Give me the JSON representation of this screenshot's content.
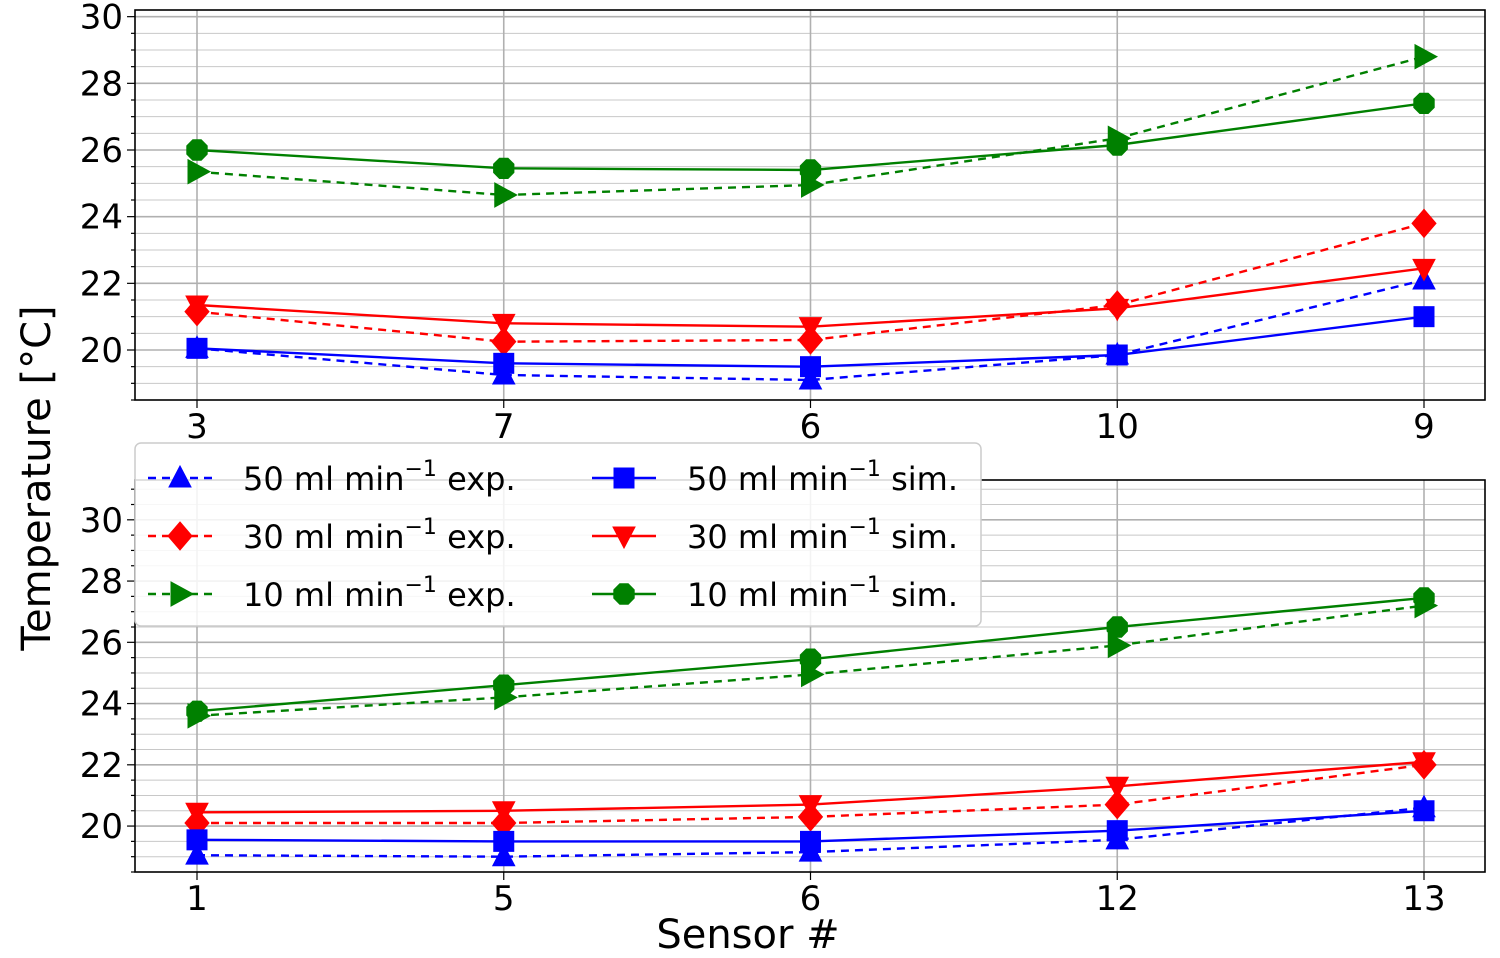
{
  "chart_data": [
    {
      "type": "line",
      "categories": [
        "3",
        "7",
        "6",
        "10",
        "9"
      ],
      "ylim": [
        18.5,
        30.2
      ],
      "yticks": [
        20,
        22,
        24,
        26,
        28,
        30
      ],
      "ylabel": "Temperature [°C]",
      "xlabel": "",
      "grid": true,
      "series": [
        {
          "name": "50 ml min⁻¹ exp.",
          "values": [
            20.05,
            19.25,
            19.1,
            19.85,
            22.1
          ]
        },
        {
          "name": "30 ml min⁻¹ exp.",
          "values": [
            21.15,
            20.25,
            20.3,
            21.35,
            23.8
          ]
        },
        {
          "name": "10 ml min⁻¹ exp.",
          "values": [
            25.35,
            24.65,
            24.95,
            26.35,
            28.8
          ]
        },
        {
          "name": "50 ml min⁻¹ sim.",
          "values": [
            20.05,
            19.6,
            19.5,
            19.85,
            21.0
          ]
        },
        {
          "name": "30 ml min⁻¹ sim.",
          "values": [
            21.35,
            20.8,
            20.7,
            21.25,
            22.45
          ]
        },
        {
          "name": "10 ml min⁻¹ sim.",
          "values": [
            26.0,
            25.45,
            25.4,
            26.15,
            27.4
          ]
        }
      ]
    },
    {
      "type": "line",
      "categories": [
        "1",
        "5",
        "6",
        "12",
        "13"
      ],
      "ylim": [
        18.5,
        31.3
      ],
      "yticks": [
        20,
        22,
        24,
        26,
        28,
        30
      ],
      "ylabel": "Temperature [°C]",
      "xlabel": "Sensor #",
      "grid": true,
      "series": [
        {
          "name": "50 ml min⁻¹ exp.",
          "values": [
            19.05,
            19.0,
            19.15,
            19.55,
            20.6
          ]
        },
        {
          "name": "30 ml min⁻¹ exp.",
          "values": [
            20.1,
            20.1,
            20.3,
            20.7,
            22.0
          ]
        },
        {
          "name": "10 ml min⁻¹ exp.",
          "values": [
            23.6,
            24.2,
            24.95,
            25.9,
            27.2
          ]
        },
        {
          "name": "50 ml min⁻¹ sim.",
          "values": [
            19.55,
            19.5,
            19.5,
            19.85,
            20.5
          ]
        },
        {
          "name": "30 ml min⁻¹ sim.",
          "values": [
            20.45,
            20.5,
            20.7,
            21.3,
            22.1
          ]
        },
        {
          "name": "10 ml min⁻¹ sim.",
          "values": [
            23.75,
            24.6,
            25.45,
            26.5,
            27.45
          ]
        }
      ]
    }
  ],
  "legend": {
    "position": "center-left",
    "entries": [
      {
        "prefix": "50 ml min",
        "sup": "−1",
        "suffix": " exp.",
        "color": "#0000ff",
        "marker": "triangle-up",
        "dash": true
      },
      {
        "prefix": "30 ml min",
        "sup": "−1",
        "suffix": " exp.",
        "color": "#ff0000",
        "marker": "diamond",
        "dash": true
      },
      {
        "prefix": "10 ml min",
        "sup": "−1",
        "suffix": " exp.",
        "color": "#008000",
        "marker": "triangle-right",
        "dash": true
      },
      {
        "prefix": "50 ml min",
        "sup": "−1",
        "suffix": " sim.",
        "color": "#0000ff",
        "marker": "square",
        "dash": false
      },
      {
        "prefix": "30 ml min",
        "sup": "−1",
        "suffix": " sim.",
        "color": "#ff0000",
        "marker": "triangle-down",
        "dash": false
      },
      {
        "prefix": "10 ml min",
        "sup": "−1",
        "suffix": " sim.",
        "color": "#008000",
        "marker": "octagon",
        "dash": false
      }
    ]
  }
}
